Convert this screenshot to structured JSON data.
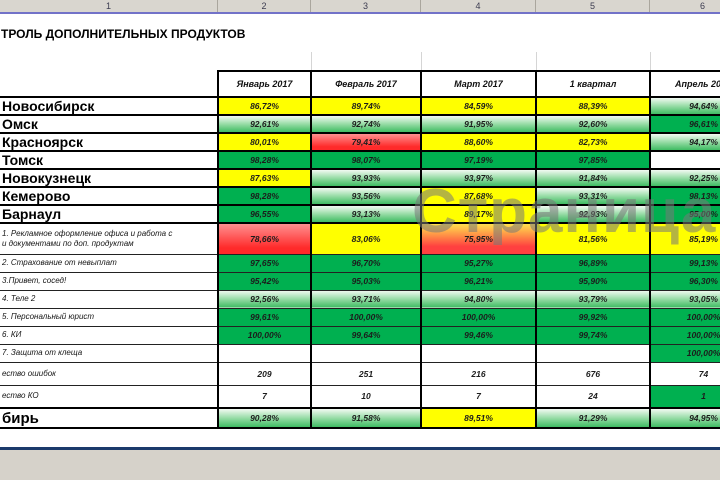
{
  "window": {
    "column_strip": [
      "1",
      "2",
      "3",
      "4",
      "5",
      "6"
    ],
    "title": "ТРОЛЬ ДОПОЛНИТЕЛЬНЫХ ПРОДУКТОВ",
    "watermark": "Страница 1"
  },
  "colors": {
    "fill_yellow": "#ffff00",
    "fill_red": "#ff2a2a",
    "fill_green_solid": "#00b050",
    "fill_green_gradient_bottom": "#3fbc63",
    "freeze_line": "#7272c8",
    "split_line": "#1b3a6b",
    "chrome_gray": "#d6d2ca"
  },
  "table": {
    "columns": [
      "Январь 2017",
      "Февраль 2017",
      "Март 2017",
      "1 квартал",
      "Апрель 2017"
    ],
    "rows": [
      {
        "label": "Новосибирск",
        "type": "city",
        "cells": [
          {
            "v": "86,72%",
            "c": "y"
          },
          {
            "v": "89,74%",
            "c": "y"
          },
          {
            "v": "84,59%",
            "c": "y"
          },
          {
            "v": "88,39%",
            "c": "y"
          },
          {
            "v": "94,64%",
            "c": "g"
          }
        ]
      },
      {
        "label": "Омск",
        "type": "city",
        "cells": [
          {
            "v": "92,61%",
            "c": "g"
          },
          {
            "v": "92,74%",
            "c": "g"
          },
          {
            "v": "91,95%",
            "c": "g"
          },
          {
            "v": "92,60%",
            "c": "g"
          },
          {
            "v": "96,61%",
            "c": "G"
          }
        ]
      },
      {
        "label": "Красноярск",
        "type": "city",
        "cells": [
          {
            "v": "80,01%",
            "c": "y"
          },
          {
            "v": "79,41%",
            "c": "r"
          },
          {
            "v": "88,60%",
            "c": "y"
          },
          {
            "v": "82,73%",
            "c": "y"
          },
          {
            "v": "94,17%",
            "c": "g"
          }
        ]
      },
      {
        "label": "Томск",
        "type": "city",
        "cells": [
          {
            "v": "98,28%",
            "c": "G"
          },
          {
            "v": "98,07%",
            "c": "G"
          },
          {
            "v": "97,19%",
            "c": "G"
          },
          {
            "v": "97,85%",
            "c": "G"
          },
          {
            "v": "",
            "c": "w"
          }
        ]
      },
      {
        "label": "Новокузнецк",
        "type": "city",
        "cells": [
          {
            "v": "87,63%",
            "c": "y"
          },
          {
            "v": "93,93%",
            "c": "g"
          },
          {
            "v": "93,97%",
            "c": "g"
          },
          {
            "v": "91,84%",
            "c": "g"
          },
          {
            "v": "92,25%",
            "c": "g"
          }
        ]
      },
      {
        "label": "Кемерово",
        "type": "city",
        "cells": [
          {
            "v": "98,28%",
            "c": "G"
          },
          {
            "v": "93,56%",
            "c": "g"
          },
          {
            "v": "87,68%",
            "c": "y"
          },
          {
            "v": "93,31%",
            "c": "g"
          },
          {
            "v": "98,13%",
            "c": "G"
          }
        ]
      },
      {
        "label": "Барнаул",
        "type": "city",
        "cells": [
          {
            "v": "96,55%",
            "c": "G"
          },
          {
            "v": "93,13%",
            "c": "g"
          },
          {
            "v": "89,17%",
            "c": "y"
          },
          {
            "v": "92,93%",
            "c": "g"
          },
          {
            "v": "95,00%",
            "c": "G"
          }
        ]
      },
      {
        "label": "1.  Рекламное оформление офиса и работа с",
        "label2": "и документами по доп. продуктам",
        "type": "product2",
        "cells": [
          {
            "v": "78,66%",
            "c": "r"
          },
          {
            "v": "83,06%",
            "c": "y"
          },
          {
            "v": "75,95%",
            "c": "yr"
          },
          {
            "v": "81,56%",
            "c": "y"
          },
          {
            "v": "85,19%",
            "c": "y"
          }
        ]
      },
      {
        "label": "2. Страхование от невыплат",
        "type": "product",
        "cells": [
          {
            "v": "97,65%",
            "c": "G"
          },
          {
            "v": "96,70%",
            "c": "G"
          },
          {
            "v": "95,27%",
            "c": "G"
          },
          {
            "v": "96,89%",
            "c": "G"
          },
          {
            "v": "99,13%",
            "c": "G"
          }
        ]
      },
      {
        "label": "3.Привет, сосед!",
        "type": "product",
        "cells": [
          {
            "v": "95,42%",
            "c": "G"
          },
          {
            "v": "95,03%",
            "c": "G"
          },
          {
            "v": "96,21%",
            "c": "G"
          },
          {
            "v": "95,90%",
            "c": "G"
          },
          {
            "v": "96,30%",
            "c": "G"
          }
        ]
      },
      {
        "label": "4. Теле 2",
        "type": "product",
        "cells": [
          {
            "v": "92,56%",
            "c": "g"
          },
          {
            "v": "93,71%",
            "c": "g"
          },
          {
            "v": "94,80%",
            "c": "g"
          },
          {
            "v": "93,79%",
            "c": "g"
          },
          {
            "v": "93,05%",
            "c": "g"
          }
        ]
      },
      {
        "label": "5. Персональный юрист",
        "type": "product",
        "cells": [
          {
            "v": "99,61%",
            "c": "G"
          },
          {
            "v": "100,00%",
            "c": "G"
          },
          {
            "v": "100,00%",
            "c": "G"
          },
          {
            "v": "99,92%",
            "c": "G"
          },
          {
            "v": "100,00%",
            "c": "G"
          }
        ]
      },
      {
        "label": "6. КИ",
        "type": "product",
        "cells": [
          {
            "v": "100,00%",
            "c": "G"
          },
          {
            "v": "99,64%",
            "c": "G"
          },
          {
            "v": "99,46%",
            "c": "G"
          },
          {
            "v": "99,74%",
            "c": "G"
          },
          {
            "v": "100,00%",
            "c": "G"
          }
        ]
      },
      {
        "label": "7. Защита от клеща",
        "type": "product",
        "cells": [
          {
            "v": "",
            "c": "w"
          },
          {
            "v": "",
            "c": "w"
          },
          {
            "v": "",
            "c": "w"
          },
          {
            "v": "",
            "c": "w"
          },
          {
            "v": "100,00%",
            "c": "G"
          }
        ]
      },
      {
        "label": "ество ошибок",
        "type": "count",
        "cells": [
          {
            "v": "209",
            "c": "w"
          },
          {
            "v": "251",
            "c": "w"
          },
          {
            "v": "216",
            "c": "w"
          },
          {
            "v": "676",
            "c": "w"
          },
          {
            "v": "74",
            "c": "w"
          }
        ]
      },
      {
        "label": "ество КО",
        "type": "count",
        "cells": [
          {
            "v": "7",
            "c": "w"
          },
          {
            "v": "10",
            "c": "w"
          },
          {
            "v": "7",
            "c": "w"
          },
          {
            "v": "24",
            "c": "w"
          },
          {
            "v": "1",
            "c": "G"
          }
        ]
      },
      {
        "label": "бирь",
        "type": "total",
        "cells": [
          {
            "v": "90,28%",
            "c": "g"
          },
          {
            "v": "91,58%",
            "c": "g"
          },
          {
            "v": "89,51%",
            "c": "y"
          },
          {
            "v": "91,29%",
            "c": "g"
          },
          {
            "v": "94,95%",
            "c": "g"
          }
        ]
      }
    ]
  }
}
